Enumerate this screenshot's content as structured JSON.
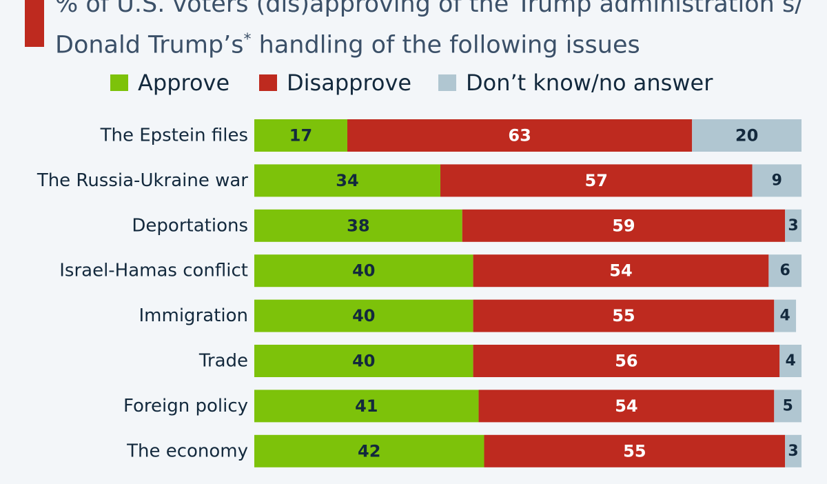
{
  "title": {
    "line1": "% of U.S. voters (dis)approving of the Trump administration’s/",
    "line2_main": "Donald Trump’s",
    "line2_sup": "*",
    "line2_rest": " handling of the following issues"
  },
  "colors": {
    "accent": "#be2a1f",
    "approve": "#7dc20a",
    "disapprove": "#be2a1f",
    "dont_know": "#b0c6d1",
    "label_dark": "#13293d",
    "label_light": "#ffffff"
  },
  "chart_data": {
    "type": "bar",
    "orientation": "horizontal",
    "stacked": true,
    "legend_position": "top",
    "categories": [
      "The Epstein files",
      "The Russia-Ukraine war",
      "Deportations",
      "Israel-Hamas conflict",
      "Immigration",
      "Trade",
      "Foreign policy",
      "The economy"
    ],
    "series": [
      {
        "name": "Approve",
        "values": [
          17,
          34,
          38,
          40,
          40,
          40,
          41,
          42
        ]
      },
      {
        "name": "Disapprove",
        "values": [
          63,
          57,
          59,
          54,
          55,
          56,
          54,
          55
        ]
      },
      {
        "name": "Don’t know/no answer",
        "values": [
          20,
          9,
          3,
          6,
          4,
          4,
          5,
          3
        ]
      }
    ],
    "xlim": [
      0,
      100
    ],
    "grid": false
  }
}
